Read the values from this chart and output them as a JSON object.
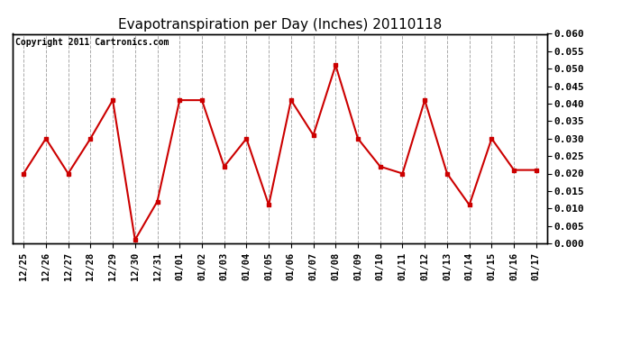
{
  "title": "Evapotranspiration per Day (Inches) 20110118",
  "copyright_text": "Copyright 2011 Cartronics.com",
  "x_labels": [
    "12/25",
    "12/26",
    "12/27",
    "12/28",
    "12/29",
    "12/30",
    "12/31",
    "01/01",
    "01/02",
    "01/03",
    "01/04",
    "01/05",
    "01/06",
    "01/07",
    "01/08",
    "01/09",
    "01/10",
    "01/11",
    "01/12",
    "01/13",
    "01/14",
    "01/15",
    "01/16",
    "01/17"
  ],
  "y_values": [
    0.02,
    0.03,
    0.02,
    0.03,
    0.041,
    0.001,
    0.012,
    0.041,
    0.041,
    0.022,
    0.03,
    0.011,
    0.041,
    0.031,
    0.051,
    0.03,
    0.022,
    0.02,
    0.041,
    0.02,
    0.011,
    0.03,
    0.021,
    0.021
  ],
  "line_color": "#cc0000",
  "marker": "s",
  "marker_size": 3,
  "ylim": [
    0.0,
    0.06
  ],
  "yticks": [
    0.0,
    0.005,
    0.01,
    0.015,
    0.02,
    0.025,
    0.03,
    0.035,
    0.04,
    0.045,
    0.05,
    0.055,
    0.06
  ],
  "grid_color": "#aaaaaa",
  "grid_style": "--",
  "background_color": "#ffffff",
  "title_fontsize": 11,
  "copyright_fontsize": 7,
  "tick_fontsize": 7.5,
  "ytick_fontsize": 8
}
